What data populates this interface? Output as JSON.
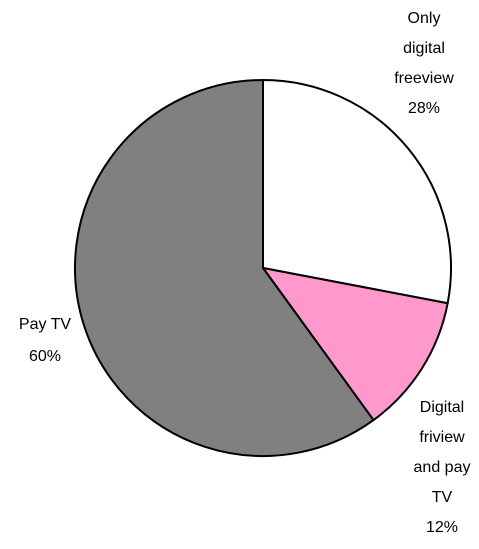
{
  "chart_data": {
    "type": "pie",
    "categories": [
      "Only digital freeview",
      "Digital friview and pay TV",
      "Pay TV"
    ],
    "values": [
      28,
      12,
      60
    ],
    "value_labels": [
      "28%",
      "12%",
      "60%"
    ],
    "colors": [
      "#ffffff",
      "#ff99cc",
      "#808080"
    ]
  }
}
